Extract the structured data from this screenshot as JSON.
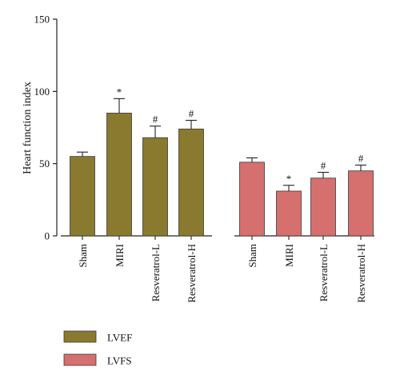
{
  "chart_data": {
    "type": "bar",
    "ylabel": "Heart function index",
    "ylim": [
      0,
      150
    ],
    "yticks": [
      0,
      50,
      100,
      150
    ],
    "grid": false,
    "legend_position": "bottom-left",
    "groups": [
      {
        "series_name": "LVEF",
        "color": "#8a7a2f",
        "categories": [
          "Sham",
          "MIRI",
          "Resveratrol-L",
          "Resveratrol-H"
        ],
        "values": [
          55,
          85,
          68,
          74
        ],
        "errors": [
          3,
          10,
          8,
          6
        ],
        "markers": [
          "",
          "*",
          "#",
          "#"
        ]
      },
      {
        "series_name": "LVFS",
        "color": "#d5706e",
        "categories": [
          "Sham",
          "MIRI",
          "Resveratrol-L",
          "Resveratrol-H"
        ],
        "values": [
          51,
          31,
          40,
          45
        ],
        "errors": [
          3,
          4,
          4,
          4
        ],
        "markers": [
          "",
          "*",
          "#",
          "#"
        ]
      }
    ]
  }
}
